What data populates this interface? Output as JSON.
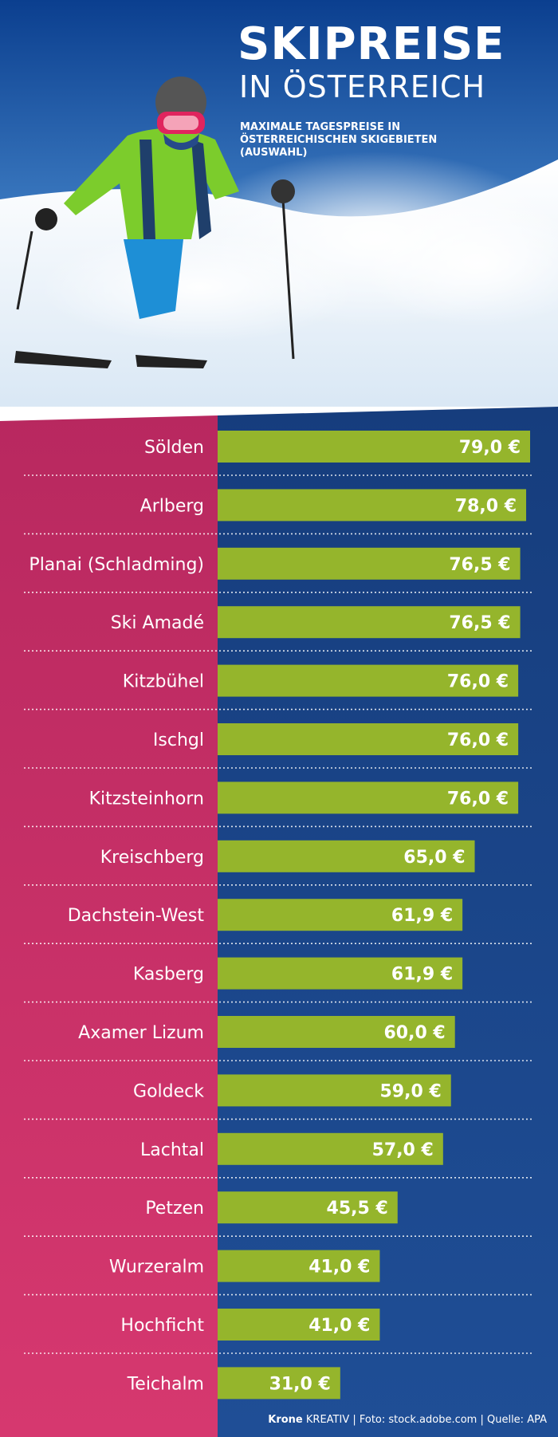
{
  "header": {
    "title": "SKIPREISE",
    "subtitle": "IN ÖSTERREICH",
    "description": "MAXIMALE TAGESPREISE IN ÖSTERREICHISCHEN SKIGEBIETEN (AUSWAHL)"
  },
  "chart_data": {
    "type": "bar",
    "orientation": "horizontal",
    "categories": [
      "Sölden",
      "Arlberg",
      "Planai (Schladming)",
      "Ski Amadé",
      "Kitzbühel",
      "Ischgl",
      "Kitzsteinhorn",
      "Kreischberg",
      "Dachstein-West",
      "Kasberg",
      "Axamer Lizum",
      "Goldeck",
      "Lachtal",
      "Petzen",
      "Wurzeralm",
      "Hochficht",
      "Teichalm"
    ],
    "values": [
      79.0,
      78.0,
      76.5,
      76.5,
      76.0,
      76.0,
      76.0,
      65.0,
      61.9,
      61.9,
      60.0,
      59.0,
      57.0,
      45.5,
      41.0,
      41.0,
      31.0
    ],
    "labels": [
      "79,0 €",
      "78,0 €",
      "76,5 €",
      "76,5 €",
      "76,0 €",
      "76,0 €",
      "76,0 €",
      "65,0 €",
      "61,9 €",
      "61,9 €",
      "60,0 €",
      "59,0 €",
      "57,0 €",
      "45,5 €",
      "41,0 €",
      "41,0 €",
      "31,0 €"
    ],
    "unit": "€",
    "xlim": [
      0,
      79.0
    ],
    "bar_color": "#95b52c",
    "left_panel_color": "#d6386f",
    "right_panel_color": "#1f4e96"
  },
  "footer": {
    "brand": "Krone",
    "credit": " KREATIV | Foto: stock.adobe.com | Quelle: APA"
  }
}
